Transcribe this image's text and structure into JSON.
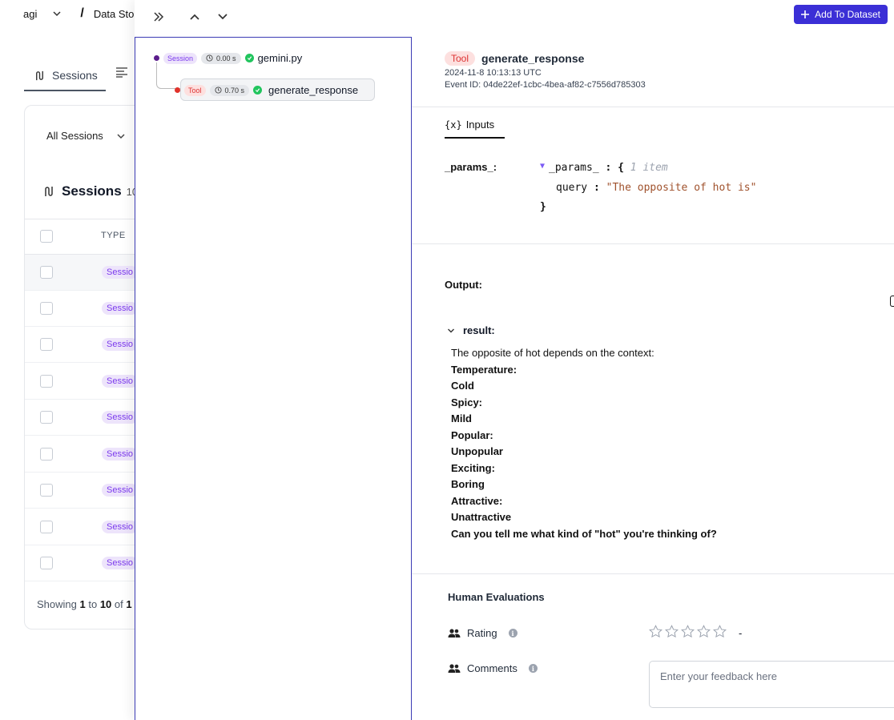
{
  "breadcrumbs": {
    "project": "agi",
    "separator": "/",
    "current": "Data Sto"
  },
  "background": {
    "tabs": [
      {
        "label": "Sessions"
      }
    ],
    "filter_label": "All Sessions",
    "sessions_title": "Sessions",
    "sessions_count": "10",
    "type_header": "TYPE",
    "row_badge": "Sessio",
    "showing": {
      "prefix": "Showing",
      "from": "1",
      "to_word": "to",
      "to": "10",
      "of_word": "of",
      "total": "1"
    }
  },
  "toolbar": {
    "add_to_dataset": "Add To Dataset"
  },
  "tree": {
    "root": {
      "tag": "Session",
      "duration": "0.00 s",
      "name": "gemini.py"
    },
    "child": {
      "tag": "Tool",
      "duration": "0.70 s",
      "name": "generate_response"
    }
  },
  "detail": {
    "badge": "Tool",
    "name": "generate_response",
    "timestamp": "2024-11-8 10:13:13 UTC",
    "event_id": "Event ID: 04de22ef-1cbc-4bea-af82-c7556d785303",
    "inputs_tab": {
      "icon": "{x}",
      "label": "Inputs"
    },
    "params_label": "_params_:",
    "json": {
      "key": "_params_",
      "colon": ":",
      "open": "{",
      "meta": "1 item",
      "query_key": "query",
      "query_value": "\"The opposite of hot is\"",
      "close": "}"
    },
    "output_label": "Output:",
    "result_label": "result:",
    "result_lines": [
      {
        "text": "The opposite of hot depends on the context:",
        "bold": false
      },
      {
        "text": "Temperature:",
        "bold": true
      },
      {
        "text": "Cold",
        "bold": true
      },
      {
        "text": "Spicy:",
        "bold": true
      },
      {
        "text": "Mild",
        "bold": true
      },
      {
        "text": "Popular:",
        "bold": true
      },
      {
        "text": "Unpopular",
        "bold": true
      },
      {
        "text": "Exciting:",
        "bold": true
      },
      {
        "text": "Boring",
        "bold": true
      },
      {
        "text": "Attractive:",
        "bold": true
      },
      {
        "text": "Unattractive",
        "bold": true
      },
      {
        "text": "Can you tell me what kind of \"hot\" you're thinking of?",
        "bold": true
      }
    ],
    "human_evaluations": {
      "title": "Human Evaluations",
      "rating_label": "Rating",
      "rating_value": "-",
      "rating_stars": 0,
      "rating_max": 5,
      "comments_label": "Comments",
      "comments_placeholder": "Enter your feedback here"
    }
  },
  "colors": {
    "accent": "#3b2fd6",
    "session": "#7c3aed",
    "tool": "#d33333",
    "success": "#22c55e"
  }
}
